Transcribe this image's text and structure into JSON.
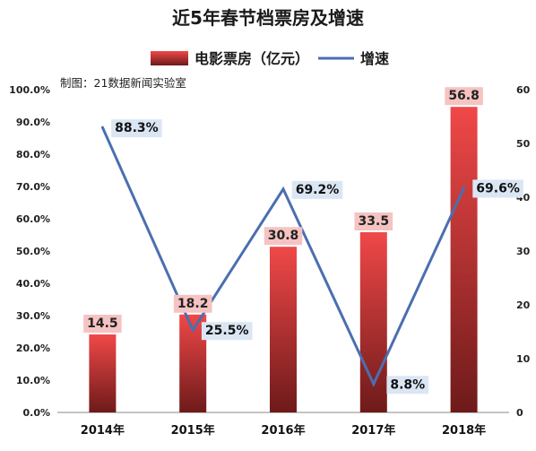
{
  "chart_data": {
    "type": "bar",
    "title": "近5年春节档票房及增速",
    "credit": "制图：21数据新闻实验室",
    "categories": [
      "2014年",
      "2015年",
      "2016年",
      "2017年",
      "2018年"
    ],
    "series": [
      {
        "name": "电影票房（亿元）",
        "type": "bar",
        "axis": "right",
        "values": [
          14.5,
          18.2,
          30.8,
          33.5,
          56.8
        ],
        "labels": [
          "14.5",
          "18.2",
          "30.8",
          "33.5",
          "56.8"
        ]
      },
      {
        "name": "增速",
        "type": "line",
        "axis": "left",
        "values": [
          88.3,
          25.5,
          69.2,
          8.8,
          69.6
        ],
        "labels": [
          "88.3%",
          "25.5%",
          "69.2%",
          "8.8%",
          "69.6%"
        ]
      }
    ],
    "y_left": {
      "min": 0,
      "max": 100,
      "ticks": [
        "0.0%",
        "10.0%",
        "20.0%",
        "30.0%",
        "40.0%",
        "50.0%",
        "60.0%",
        "70.0%",
        "80.0%",
        "90.0%",
        "100.0%"
      ]
    },
    "y_right": {
      "min": 0,
      "max": 60,
      "ticks": [
        "0",
        "10",
        "20",
        "30",
        "40",
        "50",
        "60"
      ]
    },
    "legend_position": "top-center",
    "grid": false,
    "colors": {
      "bar_top": "#f04848",
      "bar_bottom": "#6e1a1a",
      "line": "#4a6fb0",
      "bar_label_bg": "#f6c3c3",
      "line_label_bg": "#dbe6f4"
    }
  }
}
